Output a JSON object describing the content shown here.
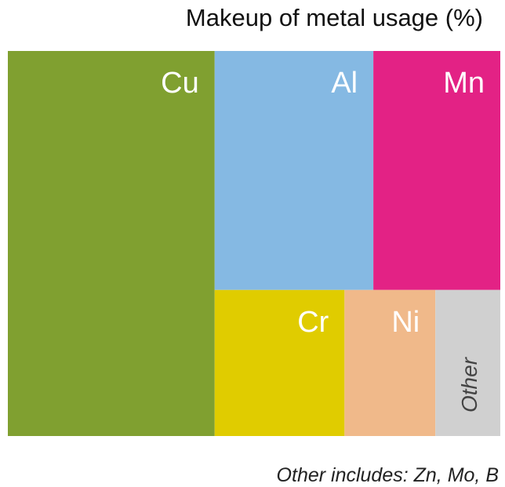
{
  "chart_data": {
    "type": "treemap",
    "title": "Makeup of metal usage (%)",
    "categories": [
      "Cu",
      "Al",
      "Mn",
      "Cr",
      "Ni",
      "Other"
    ],
    "values": [
      42,
      20,
      16,
      10,
      7,
      5
    ],
    "colors": [
      "#80a030",
      "#85b9e3",
      "#e32285",
      "#e0cc00",
      "#f0b98a",
      "#d0d0d0"
    ],
    "note": "Other includes: Zn, Mo, B"
  }
}
